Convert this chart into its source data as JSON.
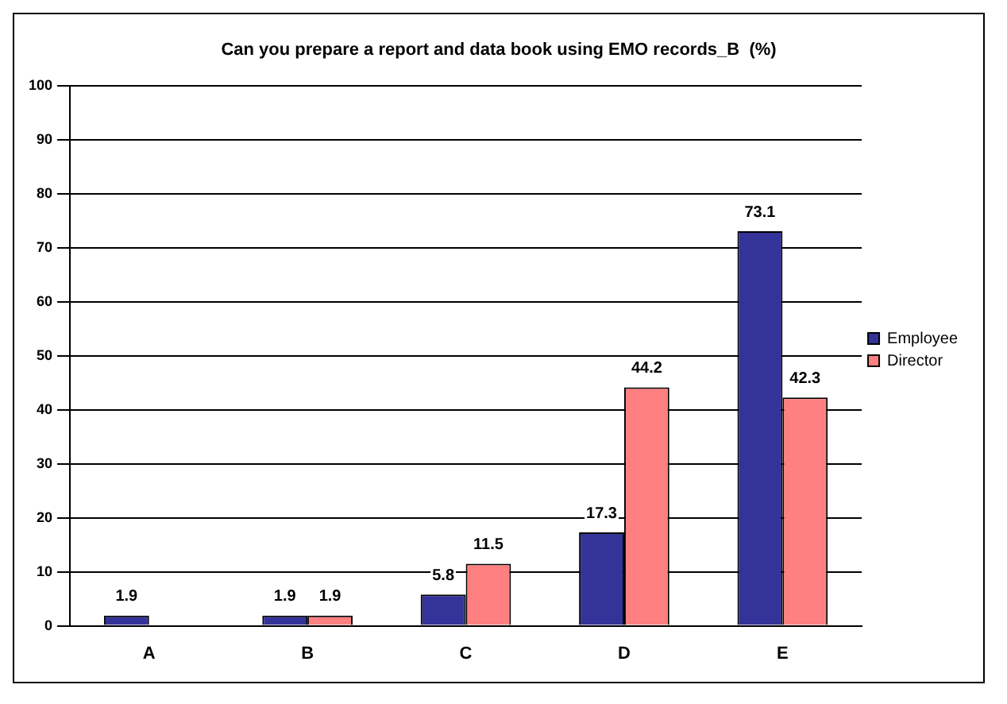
{
  "chart_data": {
    "type": "bar",
    "title": "Can you prepare a report and data book using EMO records_B  (%)",
    "categories": [
      "A",
      "B",
      "C",
      "D",
      "E"
    ],
    "series": [
      {
        "name": "Employee",
        "color": "#333399",
        "values": [
          1.9,
          1.9,
          5.8,
          17.3,
          73.1
        ]
      },
      {
        "name": "Director",
        "color": "#ff8080",
        "values": [
          null,
          1.9,
          11.5,
          44.2,
          42.3
        ]
      }
    ],
    "ylim": [
      0,
      100
    ],
    "yticks": [
      0,
      10,
      20,
      30,
      40,
      50,
      60,
      70,
      80,
      90,
      100
    ],
    "grid": "y",
    "legend": "right",
    "data_labels": true
  }
}
